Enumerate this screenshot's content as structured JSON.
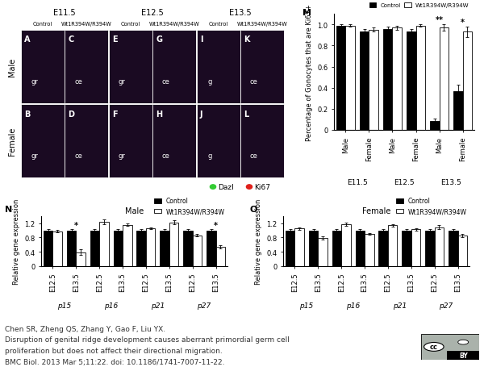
{
  "micrographs": {
    "stages": [
      "E11.5",
      "E12.5",
      "E13.5"
    ],
    "genotypes": [
      "Control",
      "Wt1R394W/R394W"
    ],
    "rows": [
      "Male",
      "Female"
    ],
    "panels": [
      [
        {
          "letter": "A",
          "labels": [
            "gr"
          ]
        },
        {
          "letter": "C",
          "labels": [
            "ce"
          ]
        },
        {
          "letter": "E",
          "labels": [
            "gr"
          ]
        },
        {
          "letter": "G",
          "labels": [
            "ce"
          ]
        },
        {
          "letter": "I",
          "labels": [
            "g"
          ]
        },
        {
          "letter": "K",
          "labels": [
            "ce"
          ]
        }
      ],
      [
        {
          "letter": "B",
          "labels": [
            "gr"
          ]
        },
        {
          "letter": "D",
          "labels": [
            "ce"
          ]
        },
        {
          "letter": "F",
          "labels": [
            "gr"
          ]
        },
        {
          "letter": "H",
          "labels": [
            "ce"
          ]
        },
        {
          "letter": "J",
          "labels": [
            "g"
          ]
        },
        {
          "letter": "L",
          "labels": [
            "ce"
          ]
        }
      ]
    ],
    "stain_legend": [
      {
        "name": "Dazl",
        "color": "#33cc33"
      },
      {
        "name": "Ki67",
        "color": "#e0201b"
      }
    ]
  },
  "chart_data": [
    {
      "type": "bar",
      "panel": "M",
      "y_label": "Percentage of Gonocytes that are Ki67+",
      "categories": [
        "Male",
        "Female",
        "Male",
        "Female",
        "Male",
        "Female"
      ],
      "groups": [
        "E11.5",
        "E12.5",
        "E13.5"
      ],
      "series": [
        {
          "name": "Control",
          "color": "#000000",
          "values": [
            0.99,
            0.93,
            0.96,
            0.93,
            0.08,
            0.37
          ],
          "errors": [
            0.01,
            0.03,
            0.02,
            0.03,
            0.03,
            0.06
          ]
        },
        {
          "name": "Wt1R394W/R394W",
          "color": "#ffffff",
          "values": [
            0.99,
            0.95,
            0.97,
            0.99,
            0.97,
            0.93
          ],
          "errors": [
            0.01,
            0.02,
            0.02,
            0.01,
            0.03,
            0.05
          ]
        }
      ],
      "ylim": [
        0,
        1.1
      ],
      "yticks": [
        0,
        0.2,
        0.4,
        0.6,
        0.8,
        {
          "value": 1,
          "label": "1.0"
        }
      ],
      "annotations": [
        {
          "category_index": 4,
          "text": "**"
        },
        {
          "category_index": 5,
          "text": "*"
        }
      ],
      "legend": "upper right"
    },
    {
      "type": "bar",
      "panel": "N",
      "title": "Male",
      "y_label": "Relative gene expression",
      "categories": [
        "E12.5",
        "E13.5",
        "E12.5",
        "E13.5",
        "E12.5",
        "E13.5",
        "E12.5",
        "E13.5"
      ],
      "groups": [
        "p15",
        "p16",
        "p21",
        "p27"
      ],
      "series": [
        {
          "name": "Control",
          "color": "#000000",
          "values": [
            1.0,
            1.0,
            1.0,
            1.0,
            1.0,
            1.0,
            1.0,
            1.0
          ],
          "errors": [
            0.03,
            0.03,
            0.03,
            0.03,
            0.03,
            0.03,
            0.03,
            0.03
          ]
        },
        {
          "name": "Wt1R394W/R394W",
          "color": "#ffffff",
          "values": [
            0.98,
            0.38,
            1.24,
            1.16,
            1.06,
            1.23,
            0.86,
            0.54
          ],
          "errors": [
            0.03,
            0.08,
            0.07,
            0.04,
            0.03,
            0.05,
            0.03,
            0.04
          ]
        }
      ],
      "ylim": [
        0,
        1.4
      ],
      "yticks": [
        0,
        0.4,
        0.8,
        1.2
      ],
      "annotations": [
        {
          "category_index": 1,
          "text": "*"
        },
        {
          "category_index": 7,
          "text": "*"
        }
      ],
      "legend": "lower right"
    },
    {
      "type": "bar",
      "panel": "O",
      "title": "Female",
      "y_label": "Relative gene expression",
      "categories": [
        "E12.5",
        "E13.5",
        "E12.5",
        "E13.5",
        "E12.5",
        "E13.5",
        "E12.5",
        "E13.5"
      ],
      "groups": [
        "p15",
        "p16",
        "p21",
        "p27"
      ],
      "series": [
        {
          "name": "Control",
          "color": "#000000",
          "values": [
            1.0,
            1.0,
            1.0,
            1.0,
            1.0,
            1.0,
            1.0,
            1.0
          ],
          "errors": [
            0.03,
            0.03,
            0.03,
            0.03,
            0.03,
            0.03,
            0.03,
            0.03
          ]
        },
        {
          "name": "Wt1R394W/R394W",
          "color": "#ffffff",
          "values": [
            1.05,
            0.79,
            1.17,
            0.9,
            1.14,
            1.03,
            1.09,
            0.85
          ],
          "errors": [
            0.03,
            0.04,
            0.04,
            0.03,
            0.03,
            0.04,
            0.05,
            0.05
          ]
        }
      ],
      "ylim": [
        0,
        1.4
      ],
      "yticks": [
        0,
        0.4,
        0.8,
        1.2
      ],
      "annotations": [],
      "legend": "lower right"
    }
  ],
  "citation": {
    "lines": [
      "Chen SR, Zheng QS, Zhang Y, Gao F, Liu YX.",
      "Disruption of genital ridge development causes aberrant primordial germ cell",
      "proliferation but does not affect their directional migration.",
      "BMC Biol. 2013 Mar 5;11:22. doi: 10.1186/1741-7007-11-22."
    ]
  },
  "license_badge": [
    "cc",
    "BY"
  ]
}
